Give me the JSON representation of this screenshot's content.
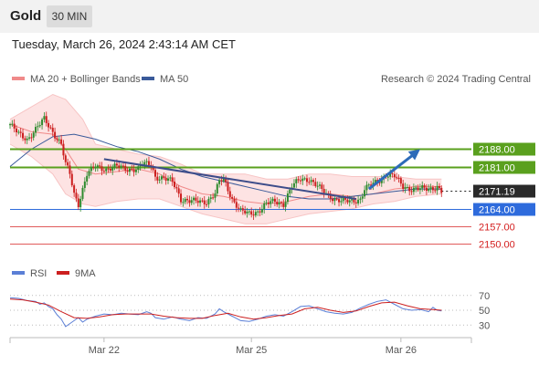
{
  "header": {
    "title": "Gold",
    "timeframe": "30 MIN"
  },
  "datetime": "Tuesday, March 26, 2024 2:43:14 AM CET",
  "legend": {
    "bb_label": "MA 20 + Bollinger Bands",
    "ma50_label": "MA 50"
  },
  "credit": "Research © 2024 Trading Central",
  "colors": {
    "candle_up": "#2e8b2e",
    "candle_down": "#cc1f1f",
    "bb_fill": "#fde3e3",
    "bb_line": "#f08a8a",
    "ma50": "#3a5a9a",
    "resistance": "#5aa01e",
    "support_blue": "#2e6bdc",
    "support_red": "#e05a5a",
    "trend": "#3d4d8a",
    "arrow": "#2d6bb8",
    "current": "#222222",
    "rsi": "#5b7fd6",
    "rsi_ma": "#cc1f1f"
  },
  "chart_data": [
    {
      "type": "candlestick",
      "title": "Gold",
      "timeframe": "30 MIN",
      "x_tick_labels": [
        "Mar 22",
        "Mar 25",
        "Mar 26"
      ],
      "price_levels": [
        {
          "label": "2188.00",
          "value": 2188.0,
          "kind": "resistance"
        },
        {
          "label": "2181.00",
          "value": 2181.0,
          "kind": "resistance"
        },
        {
          "label": "2171.19",
          "value": 2171.19,
          "kind": "current"
        },
        {
          "label": "2164.00",
          "value": 2164.0,
          "kind": "support"
        },
        {
          "label": "2157.00",
          "value": 2157.0,
          "kind": "support"
        },
        {
          "label": "2150.00",
          "value": 2150.0,
          "kind": "support"
        }
      ],
      "ylim": [
        2146,
        2212
      ],
      "series_names": [
        "MA 20 + Bollinger Bands",
        "MA 50"
      ],
      "price_path": [
        [
          0,
          2198
        ],
        [
          4,
          2194
        ],
        [
          8,
          2192
        ],
        [
          12,
          2196
        ],
        [
          16,
          2200
        ],
        [
          20,
          2195
        ],
        [
          24,
          2190
        ],
        [
          26,
          2182
        ],
        [
          28,
          2178
        ],
        [
          30,
          2170
        ],
        [
          32,
          2166
        ],
        [
          34,
          2172
        ],
        [
          36,
          2178
        ],
        [
          40,
          2181
        ],
        [
          45,
          2180
        ],
        [
          50,
          2181
        ],
        [
          55,
          2180
        ],
        [
          60,
          2180
        ],
        [
          62,
          2182
        ],
        [
          66,
          2182
        ],
        [
          68,
          2177
        ],
        [
          72,
          2176
        ],
        [
          76,
          2175
        ],
        [
          78,
          2172
        ],
        [
          80,
          2168
        ],
        [
          84,
          2167
        ],
        [
          88,
          2167
        ],
        [
          92,
          2167
        ],
        [
          96,
          2170
        ],
        [
          98,
          2175
        ],
        [
          100,
          2176
        ],
        [
          102,
          2172
        ],
        [
          104,
          2168
        ],
        [
          108,
          2163
        ],
        [
          112,
          2162
        ],
        [
          116,
          2163
        ],
        [
          120,
          2166
        ],
        [
          124,
          2167
        ],
        [
          128,
          2166
        ],
        [
          132,
          2173
        ],
        [
          136,
          2176
        ],
        [
          140,
          2176
        ],
        [
          144,
          2173
        ],
        [
          148,
          2170
        ],
        [
          152,
          2168
        ],
        [
          156,
          2167
        ],
        [
          160,
          2167
        ],
        [
          164,
          2168
        ],
        [
          166,
          2172
        ],
        [
          170,
          2174
        ],
        [
          174,
          2176
        ],
        [
          176,
          2178
        ],
        [
          180,
          2177
        ],
        [
          182,
          2175
        ],
        [
          184,
          2173
        ],
        [
          188,
          2172
        ],
        [
          192,
          2172
        ],
        [
          196,
          2172
        ],
        [
          200,
          2173
        ],
        [
          202,
          2171
        ]
      ],
      "ma50_path": [
        [
          0,
          2181
        ],
        [
          10,
          2188
        ],
        [
          20,
          2193
        ],
        [
          30,
          2194
        ],
        [
          40,
          2192
        ],
        [
          50,
          2189
        ],
        [
          60,
          2187
        ],
        [
          70,
          2184
        ],
        [
          80,
          2180
        ],
        [
          90,
          2177
        ],
        [
          100,
          2175
        ],
        [
          110,
          2173
        ],
        [
          120,
          2171
        ],
        [
          130,
          2169
        ],
        [
          140,
          2168
        ],
        [
          150,
          2168
        ],
        [
          160,
          2169
        ],
        [
          170,
          2170
        ],
        [
          180,
          2171
        ],
        [
          190,
          2172
        ],
        [
          202,
          2172
        ]
      ],
      "ma20_path": [
        [
          0,
          2198
        ],
        [
          10,
          2195
        ],
        [
          20,
          2194
        ],
        [
          26,
          2188
        ],
        [
          32,
          2180
        ],
        [
          40,
          2178
        ],
        [
          50,
          2179
        ],
        [
          60,
          2180
        ],
        [
          70,
          2178
        ],
        [
          80,
          2173
        ],
        [
          90,
          2170
        ],
        [
          100,
          2169
        ],
        [
          110,
          2167
        ],
        [
          120,
          2166
        ],
        [
          130,
          2167
        ],
        [
          140,
          2169
        ],
        [
          150,
          2170
        ],
        [
          160,
          2169
        ],
        [
          170,
          2170
        ],
        [
          180,
          2172
        ],
        [
          190,
          2173
        ],
        [
          202,
          2173
        ]
      ],
      "bb_upper": [
        [
          0,
          2200
        ],
        [
          10,
          2205
        ],
        [
          20,
          2210
        ],
        [
          26,
          2208
        ],
        [
          34,
          2200
        ],
        [
          40,
          2190
        ],
        [
          50,
          2188
        ],
        [
          60,
          2186
        ],
        [
          70,
          2185
        ],
        [
          80,
          2182
        ],
        [
          90,
          2178
        ],
        [
          100,
          2178
        ],
        [
          110,
          2178
        ],
        [
          120,
          2176
        ],
        [
          130,
          2176
        ],
        [
          140,
          2178
        ],
        [
          150,
          2178
        ],
        [
          160,
          2177
        ],
        [
          170,
          2177
        ],
        [
          180,
          2177
        ],
        [
          190,
          2176
        ],
        [
          202,
          2176
        ]
      ],
      "bb_lower": [
        [
          0,
          2190
        ],
        [
          10,
          2185
        ],
        [
          20,
          2178
        ],
        [
          26,
          2170
        ],
        [
          34,
          2166
        ],
        [
          40,
          2165
        ],
        [
          50,
          2167
        ],
        [
          60,
          2168
        ],
        [
          70,
          2168
        ],
        [
          80,
          2165
        ],
        [
          90,
          2162
        ],
        [
          100,
          2160
        ],
        [
          110,
          2158
        ],
        [
          120,
          2158
        ],
        [
          130,
          2160
        ],
        [
          140,
          2162
        ],
        [
          150,
          2163
        ],
        [
          160,
          2164
        ],
        [
          170,
          2166
        ],
        [
          180,
          2167
        ],
        [
          190,
          2169
        ],
        [
          202,
          2170
        ]
      ],
      "trendline": [
        [
          44,
          2184
        ],
        [
          162,
          2168
        ]
      ],
      "arrow": [
        [
          168,
          2172
        ],
        [
          192,
          2188
        ]
      ],
      "x_ticks": [
        {
          "label": "Mar 22",
          "x": 44
        },
        {
          "label": "Mar 25",
          "x": 113
        },
        {
          "label": "Mar 26",
          "x": 183
        }
      ],
      "x_range": [
        0,
        216
      ]
    },
    {
      "type": "line",
      "title": "RSI",
      "series": [
        {
          "name": "RSI",
          "values": [
            [
              0,
              67
            ],
            [
              4,
              66
            ],
            [
              8,
              63
            ],
            [
              12,
              62
            ],
            [
              14,
              58
            ],
            [
              16,
              60
            ],
            [
              18,
              55
            ],
            [
              20,
              52
            ],
            [
              22,
              44
            ],
            [
              24,
              38
            ],
            [
              26,
              28
            ],
            [
              28,
              32
            ],
            [
              30,
              36
            ],
            [
              32,
              40
            ],
            [
              34,
              34
            ],
            [
              36,
              38
            ],
            [
              40,
              42
            ],
            [
              44,
              45
            ],
            [
              48,
              44
            ],
            [
              52,
              46
            ],
            [
              56,
              45
            ],
            [
              60,
              44
            ],
            [
              64,
              48
            ],
            [
              66,
              46
            ],
            [
              68,
              40
            ],
            [
              72,
              38
            ],
            [
              76,
              41
            ],
            [
              80,
              38
            ],
            [
              84,
              36
            ],
            [
              88,
              40
            ],
            [
              92,
              39
            ],
            [
              96,
              45
            ],
            [
              98,
              52
            ],
            [
              100,
              48
            ],
            [
              104,
              42
            ],
            [
              108,
              36
            ],
            [
              112,
              35
            ],
            [
              116,
              38
            ],
            [
              120,
              42
            ],
            [
              124,
              44
            ],
            [
              128,
              42
            ],
            [
              132,
              48
            ],
            [
              136,
              55
            ],
            [
              140,
              56
            ],
            [
              144,
              52
            ],
            [
              148,
              48
            ],
            [
              152,
              46
            ],
            [
              156,
              45
            ],
            [
              160,
              47
            ],
            [
              164,
              53
            ],
            [
              168,
              58
            ],
            [
              172,
              62
            ],
            [
              176,
              64
            ],
            [
              180,
              58
            ],
            [
              184,
              52
            ],
            [
              188,
              50
            ],
            [
              192,
              51
            ],
            [
              196,
              48
            ],
            [
              198,
              54
            ],
            [
              200,
              50
            ],
            [
              202,
              49
            ]
          ]
        },
        {
          "name": "9MA",
          "values": [
            [
              0,
              65
            ],
            [
              6,
              64
            ],
            [
              12,
              61
            ],
            [
              18,
              57
            ],
            [
              24,
              48
            ],
            [
              30,
              40
            ],
            [
              36,
              39
            ],
            [
              42,
              41
            ],
            [
              48,
              44
            ],
            [
              54,
              45
            ],
            [
              60,
              45
            ],
            [
              66,
              45
            ],
            [
              72,
              42
            ],
            [
              78,
              40
            ],
            [
              84,
              39
            ],
            [
              90,
              39
            ],
            [
              96,
              43
            ],
            [
              102,
              46
            ],
            [
              108,
              41
            ],
            [
              114,
              38
            ],
            [
              120,
              40
            ],
            [
              126,
              43
            ],
            [
              132,
              45
            ],
            [
              138,
              52
            ],
            [
              144,
              54
            ],
            [
              150,
              50
            ],
            [
              156,
              47
            ],
            [
              162,
              49
            ],
            [
              168,
              55
            ],
            [
              174,
              60
            ],
            [
              180,
              61
            ],
            [
              186,
              56
            ],
            [
              192,
              52
            ],
            [
              198,
              51
            ],
            [
              202,
              50
            ]
          ]
        }
      ],
      "yticks": [
        "70",
        "50",
        "30"
      ],
      "ylim": [
        18,
        82
      ],
      "x_range": [
        0,
        216
      ]
    }
  ]
}
